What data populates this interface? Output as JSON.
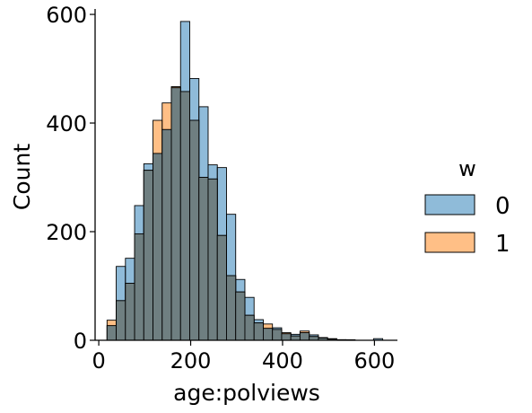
{
  "chart_data": {
    "type": "histogram",
    "xlabel": "age:polviews",
    "ylabel": "Count",
    "xlim": [
      -8,
      650
    ],
    "ylim": [
      0,
      610
    ],
    "xticks": [
      0,
      200,
      400,
      600
    ],
    "yticks": [
      0,
      200,
      400,
      600
    ],
    "grid": false,
    "bin_edges": [
      18,
      38,
      58,
      78,
      98,
      118,
      138,
      158,
      178,
      198,
      218,
      238,
      258,
      278,
      298,
      318,
      338,
      358,
      378,
      398,
      418,
      438,
      458,
      478,
      498,
      518,
      538,
      558,
      578,
      598,
      618
    ],
    "legend": {
      "title": "w",
      "placement": "right"
    },
    "series": [
      {
        "name": "0",
        "color": "#1f77b4",
        "values": [
          27,
          136,
          151,
          248,
          325,
          344,
          388,
          465,
          587,
          482,
          430,
          323,
          318,
          232,
          112,
          79,
          38,
          22,
          23,
          12,
          11,
          14,
          10,
          5,
          3,
          1,
          1,
          0,
          0,
          3
        ]
      },
      {
        "name": "1",
        "color": "#ff7f0e",
        "values": [
          37,
          73,
          105,
          196,
          313,
          405,
          437,
          467,
          458,
          405,
          300,
          297,
          193,
          119,
          89,
          46,
          32,
          30,
          20,
          14,
          8,
          17,
          7,
          4,
          2,
          1,
          0,
          0,
          0,
          0
        ]
      }
    ]
  }
}
